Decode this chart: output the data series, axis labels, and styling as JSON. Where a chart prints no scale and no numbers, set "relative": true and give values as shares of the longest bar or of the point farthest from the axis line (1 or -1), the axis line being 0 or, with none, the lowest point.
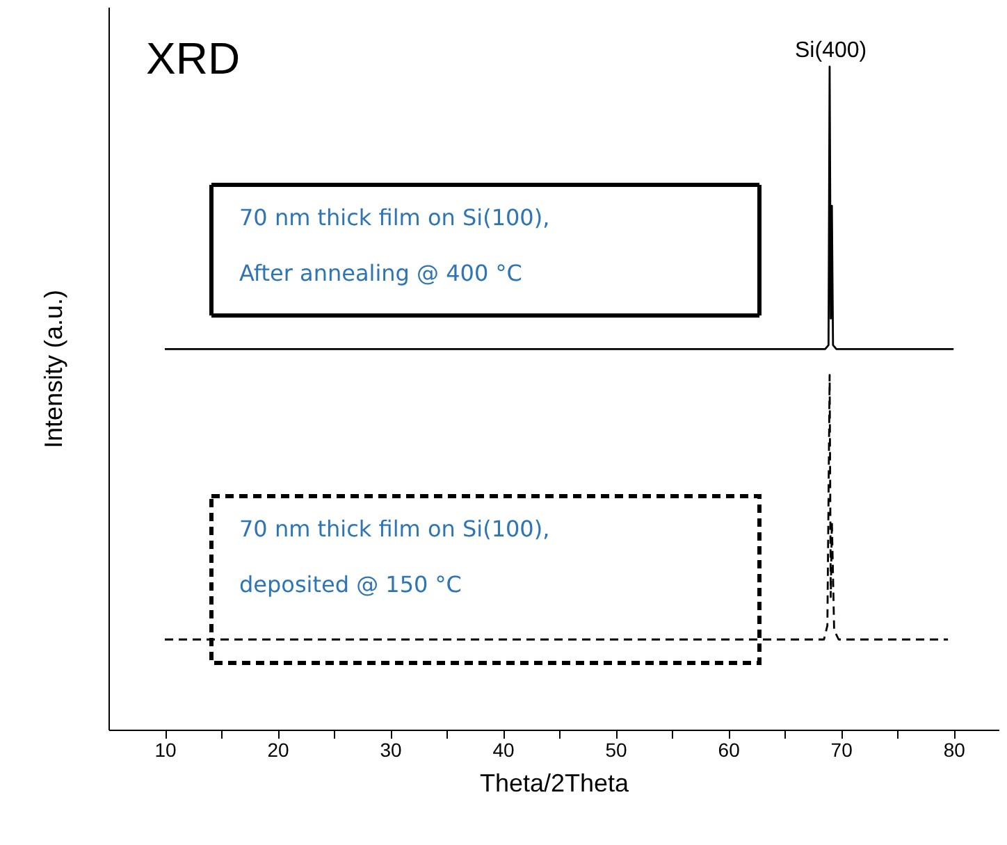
{
  "chart_data": {
    "type": "line",
    "title": "XRD",
    "xlabel": "Theta/2Theta",
    "ylabel": "Intensity (a.u.)",
    "relative": true,
    "grid": false,
    "xlim": [
      5,
      84
    ],
    "xticks": [
      10,
      {
        "value": 15,
        "label": null
      },
      20,
      {
        "value": 25,
        "label": null
      },
      30,
      {
        "value": 35,
        "label": null
      },
      40,
      {
        "value": 45,
        "label": null
      },
      50,
      {
        "value": 55,
        "label": null
      },
      60,
      {
        "value": 65,
        "label": null
      },
      70,
      {
        "value": 75,
        "label": null
      },
      80
    ],
    "series": [
      {
        "color": "#000000",
        "line_style": "solid",
        "x": [
          10,
          68.6,
          68.9,
          69.0,
          69.1,
          69.2,
          69.3,
          69.6,
          80
        ],
        "values": [
          0.574,
          0.574,
          0.58,
          1.0,
          0.62,
          0.79,
          0.58,
          0.574,
          0.574
        ]
      },
      {
        "color": "#000000",
        "line_style": "dashed",
        "x": [
          10,
          68.5,
          68.8,
          69.0,
          69.1,
          69.2,
          69.4,
          69.8,
          79.5
        ],
        "values": [
          0.136,
          0.136,
          0.157,
          0.535,
          0.2,
          0.314,
          0.15,
          0.136,
          0.136
        ]
      }
    ],
    "annotations": [
      {
        "text": "Si(400)",
        "x": 69.1,
        "y": 1.0
      },
      "70 nm thick film on Si(100),\nAfter annealing @ 400 °C",
      "70 nm thick film on Si(100),\ndeposited @ 150 °C"
    ]
  }
}
